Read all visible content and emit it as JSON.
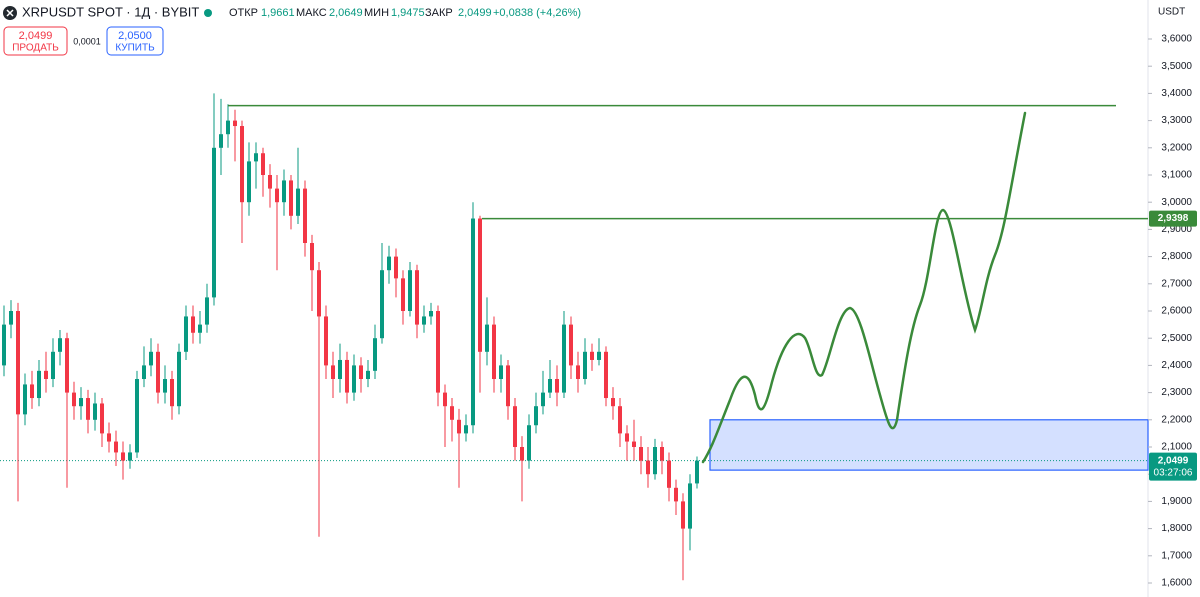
{
  "chart_data": {
    "type": "candlestick",
    "title": "XRPUSDT SPOT · 1Д · BYBIT",
    "header": {
      "open_label": "ОТКР",
      "open": "1,9661",
      "high_label": "МАКС",
      "high": "2,0649",
      "low_label": "МИН",
      "low": "1,9475",
      "close_label": "ЗАКР",
      "close": "2,0499",
      "change": "+0,0838 (+4,26%)"
    },
    "buttons": {
      "sell_price": "2,0499",
      "sell": "ПРОДАТЬ",
      "spread": "0,0001",
      "buy_price": "2,0500",
      "buy": "КУПИТЬ"
    },
    "currency": "USDT",
    "up_color": "#089981",
    "down_color": "#f23645",
    "open": [
      2.4,
      2.55,
      2.6,
      2.22,
      2.33,
      2.28,
      2.38,
      2.35,
      2.45,
      2.5,
      2.3,
      2.25,
      2.28,
      2.2,
      2.26,
      2.15,
      2.12,
      2.08,
      2.05,
      2.08,
      2.35,
      2.4,
      2.45,
      2.3,
      2.35,
      2.25,
      2.45,
      2.58,
      2.52,
      2.55,
      2.65,
      3.2,
      3.25,
      3.3,
      3.28,
      3.0,
      3.15,
      3.18,
      3.1,
      3.05,
      3.0,
      3.08,
      2.95,
      3.05,
      2.85,
      2.75,
      2.58,
      2.4,
      2.35,
      2.42,
      2.3,
      2.4,
      2.35,
      2.38,
      2.5,
      2.75,
      2.8,
      2.72,
      2.6,
      2.75,
      2.55,
      2.58,
      2.6,
      2.3,
      2.25,
      2.2,
      2.15,
      2.18,
      2.94,
      2.45,
      2.55,
      2.35,
      2.4,
      2.25,
      2.1,
      2.05,
      2.18,
      2.25,
      2.3,
      2.35,
      2.3,
      2.55,
      2.4,
      2.35,
      2.45,
      2.42,
      2.45,
      2.28,
      2.25,
      2.15,
      2.12,
      2.1,
      2.05,
      2.0,
      2.1,
      2.05,
      1.95,
      1.9,
      1.8,
      1.9661
    ],
    "high": [
      2.62,
      2.64,
      2.63,
      2.37,
      2.38,
      2.42,
      2.45,
      2.5,
      2.53,
      2.52,
      2.34,
      2.32,
      2.31,
      2.3,
      2.28,
      2.19,
      2.16,
      2.12,
      2.11,
      2.38,
      2.47,
      2.5,
      2.48,
      2.4,
      2.38,
      2.48,
      2.62,
      2.62,
      2.6,
      2.7,
      3.4,
      3.38,
      3.36,
      3.34,
      3.3,
      3.22,
      3.22,
      3.2,
      3.14,
      3.1,
      3.12,
      3.1,
      3.2,
      3.08,
      2.88,
      2.78,
      2.62,
      2.45,
      2.48,
      2.45,
      2.44,
      2.43,
      2.42,
      2.55,
      2.85,
      2.84,
      2.83,
      2.75,
      2.78,
      2.77,
      2.62,
      2.63,
      2.62,
      2.33,
      2.28,
      2.24,
      2.22,
      3.0,
      2.95,
      2.65,
      2.58,
      2.44,
      2.42,
      2.28,
      2.14,
      2.22,
      2.3,
      2.38,
      2.42,
      2.4,
      2.6,
      2.58,
      2.45,
      2.5,
      2.48,
      2.5,
      2.47,
      2.32,
      2.28,
      2.18,
      2.2,
      2.14,
      2.1,
      2.13,
      2.12,
      2.08,
      1.98,
      1.93,
      2.0,
      2.0649
    ],
    "low": [
      2.36,
      2.5,
      1.9,
      2.18,
      2.24,
      2.25,
      2.3,
      2.32,
      2.4,
      1.95,
      2.2,
      2.2,
      2.15,
      2.16,
      2.1,
      2.08,
      2.03,
      1.98,
      2.02,
      2.06,
      2.32,
      2.36,
      2.26,
      2.26,
      2.2,
      2.22,
      2.42,
      2.48,
      2.48,
      2.52,
      2.62,
      3.1,
      3.2,
      3.15,
      2.85,
      2.95,
      3.05,
      3.02,
      2.98,
      2.75,
      2.95,
      2.9,
      2.92,
      2.8,
      2.6,
      1.77,
      2.35,
      2.28,
      2.3,
      2.26,
      2.27,
      2.3,
      2.32,
      2.35,
      2.48,
      2.7,
      2.65,
      2.55,
      2.58,
      2.5,
      2.52,
      2.55,
      2.25,
      2.1,
      2.12,
      1.95,
      2.12,
      2.15,
      2.3,
      2.4,
      2.3,
      2.3,
      2.2,
      2.05,
      1.9,
      2.02,
      2.15,
      2.22,
      2.28,
      2.25,
      2.28,
      2.35,
      2.3,
      2.33,
      2.38,
      2.4,
      2.25,
      2.2,
      2.1,
      2.05,
      2.05,
      2.0,
      1.95,
      1.98,
      2.0,
      1.9,
      1.85,
      1.61,
      1.72,
      1.9475
    ],
    "close": [
      2.55,
      2.6,
      2.22,
      2.33,
      2.28,
      2.38,
      2.35,
      2.45,
      2.5,
      2.3,
      2.25,
      2.28,
      2.2,
      2.26,
      2.15,
      2.12,
      2.08,
      2.05,
      2.08,
      2.35,
      2.4,
      2.45,
      2.3,
      2.35,
      2.25,
      2.45,
      2.58,
      2.52,
      2.55,
      2.65,
      3.2,
      3.25,
      3.3,
      3.28,
      3.0,
      3.15,
      3.18,
      3.1,
      3.05,
      3.0,
      3.08,
      2.95,
      3.05,
      2.85,
      2.75,
      2.58,
      2.4,
      2.35,
      2.42,
      2.3,
      2.4,
      2.35,
      2.38,
      2.5,
      2.75,
      2.8,
      2.72,
      2.6,
      2.75,
      2.55,
      2.58,
      2.6,
      2.3,
      2.25,
      2.2,
      2.15,
      2.18,
      2.94,
      2.45,
      2.55,
      2.35,
      2.4,
      2.25,
      2.1,
      2.05,
      2.18,
      2.25,
      2.3,
      2.35,
      2.3,
      2.55,
      2.4,
      2.35,
      2.45,
      2.42,
      2.45,
      2.28,
      2.25,
      2.15,
      2.12,
      2.1,
      2.05,
      2.0,
      2.1,
      2.05,
      1.95,
      1.9,
      1.8,
      1.9661,
      2.0499
    ],
    "ylim": [
      1.6,
      3.6
    ],
    "yticks": [
      {
        "value": 1.6,
        "label": "1,6000"
      },
      {
        "value": 1.7,
        "label": "1,7000"
      },
      {
        "value": 1.8,
        "label": "1,8000"
      },
      {
        "value": 1.9,
        "label": "1,9000"
      },
      {
        "value": 2.0,
        "label": "2,0000"
      },
      {
        "value": 2.1,
        "label": "2,1000"
      },
      {
        "value": 2.2,
        "label": "2,2000"
      },
      {
        "value": 2.3,
        "label": "2,3000"
      },
      {
        "value": 2.4,
        "label": "2,4000"
      },
      {
        "value": 2.5,
        "label": "2,5000"
      },
      {
        "value": 2.6,
        "label": "2,6000"
      },
      {
        "value": 2.7,
        "label": "2,7000"
      },
      {
        "value": 2.8,
        "label": "2,8000"
      },
      {
        "value": 2.9,
        "label": "2,9000"
      },
      {
        "value": 3.0,
        "label": "3,0000"
      },
      {
        "value": 3.1,
        "label": "3,1000"
      },
      {
        "value": 3.2,
        "label": "3,2000"
      },
      {
        "value": 3.3,
        "label": "3,3000"
      },
      {
        "value": 3.4,
        "label": "3,4000"
      },
      {
        "value": 3.5,
        "label": "3,5000"
      },
      {
        "value": 3.6,
        "label": "3,6000"
      }
    ],
    "hlines": [
      3.355,
      2.9398
    ],
    "hline_labels": [
      null,
      "2,9398"
    ],
    "hline_color": "#3a8a3a",
    "zone": [
      2.015,
      2.2
    ],
    "zone_color": "#2962ff",
    "last_price": 2.0499,
    "last_price_label": "2,0499",
    "countdown": "03:27:06"
  }
}
